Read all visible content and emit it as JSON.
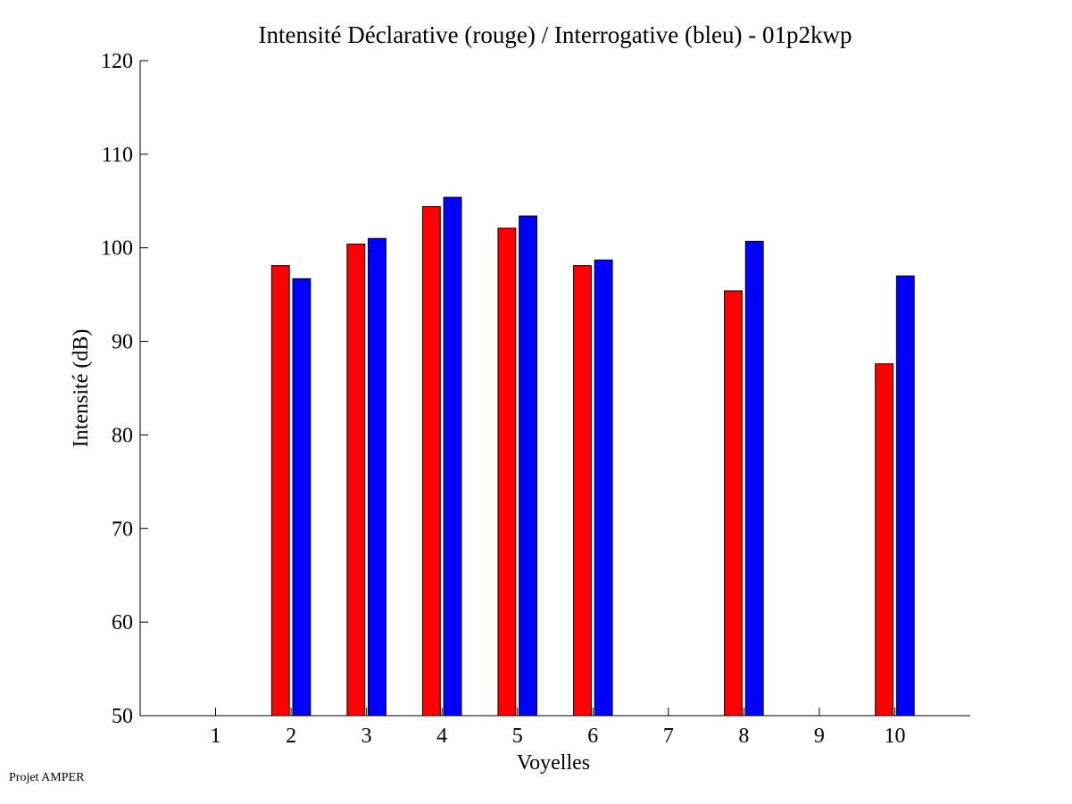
{
  "footer": "Projet AMPER",
  "chart_data": {
    "type": "bar",
    "title": "Intensité Déclarative (rouge) / Interrogative (bleu) - 01p2kwp",
    "xlabel": "Voyelles",
    "ylabel": "Intensité (dB)",
    "categories": [
      1,
      2,
      3,
      4,
      5,
      6,
      7,
      8,
      9,
      10
    ],
    "xlim": [
      0,
      11
    ],
    "ylim": [
      50,
      120
    ],
    "yticks": [
      50,
      60,
      70,
      80,
      90,
      100,
      110,
      120
    ],
    "grid": false,
    "series": [
      {
        "name": "Déclarative",
        "color": "#ff0000",
        "values": [
          null,
          98.1,
          100.4,
          104.4,
          102.1,
          98.1,
          null,
          95.4,
          null,
          87.6
        ]
      },
      {
        "name": "Interrogative",
        "color": "#0000ff",
        "values": [
          null,
          96.7,
          101.0,
          105.4,
          103.4,
          98.7,
          null,
          100.7,
          null,
          97.0
        ]
      }
    ]
  }
}
